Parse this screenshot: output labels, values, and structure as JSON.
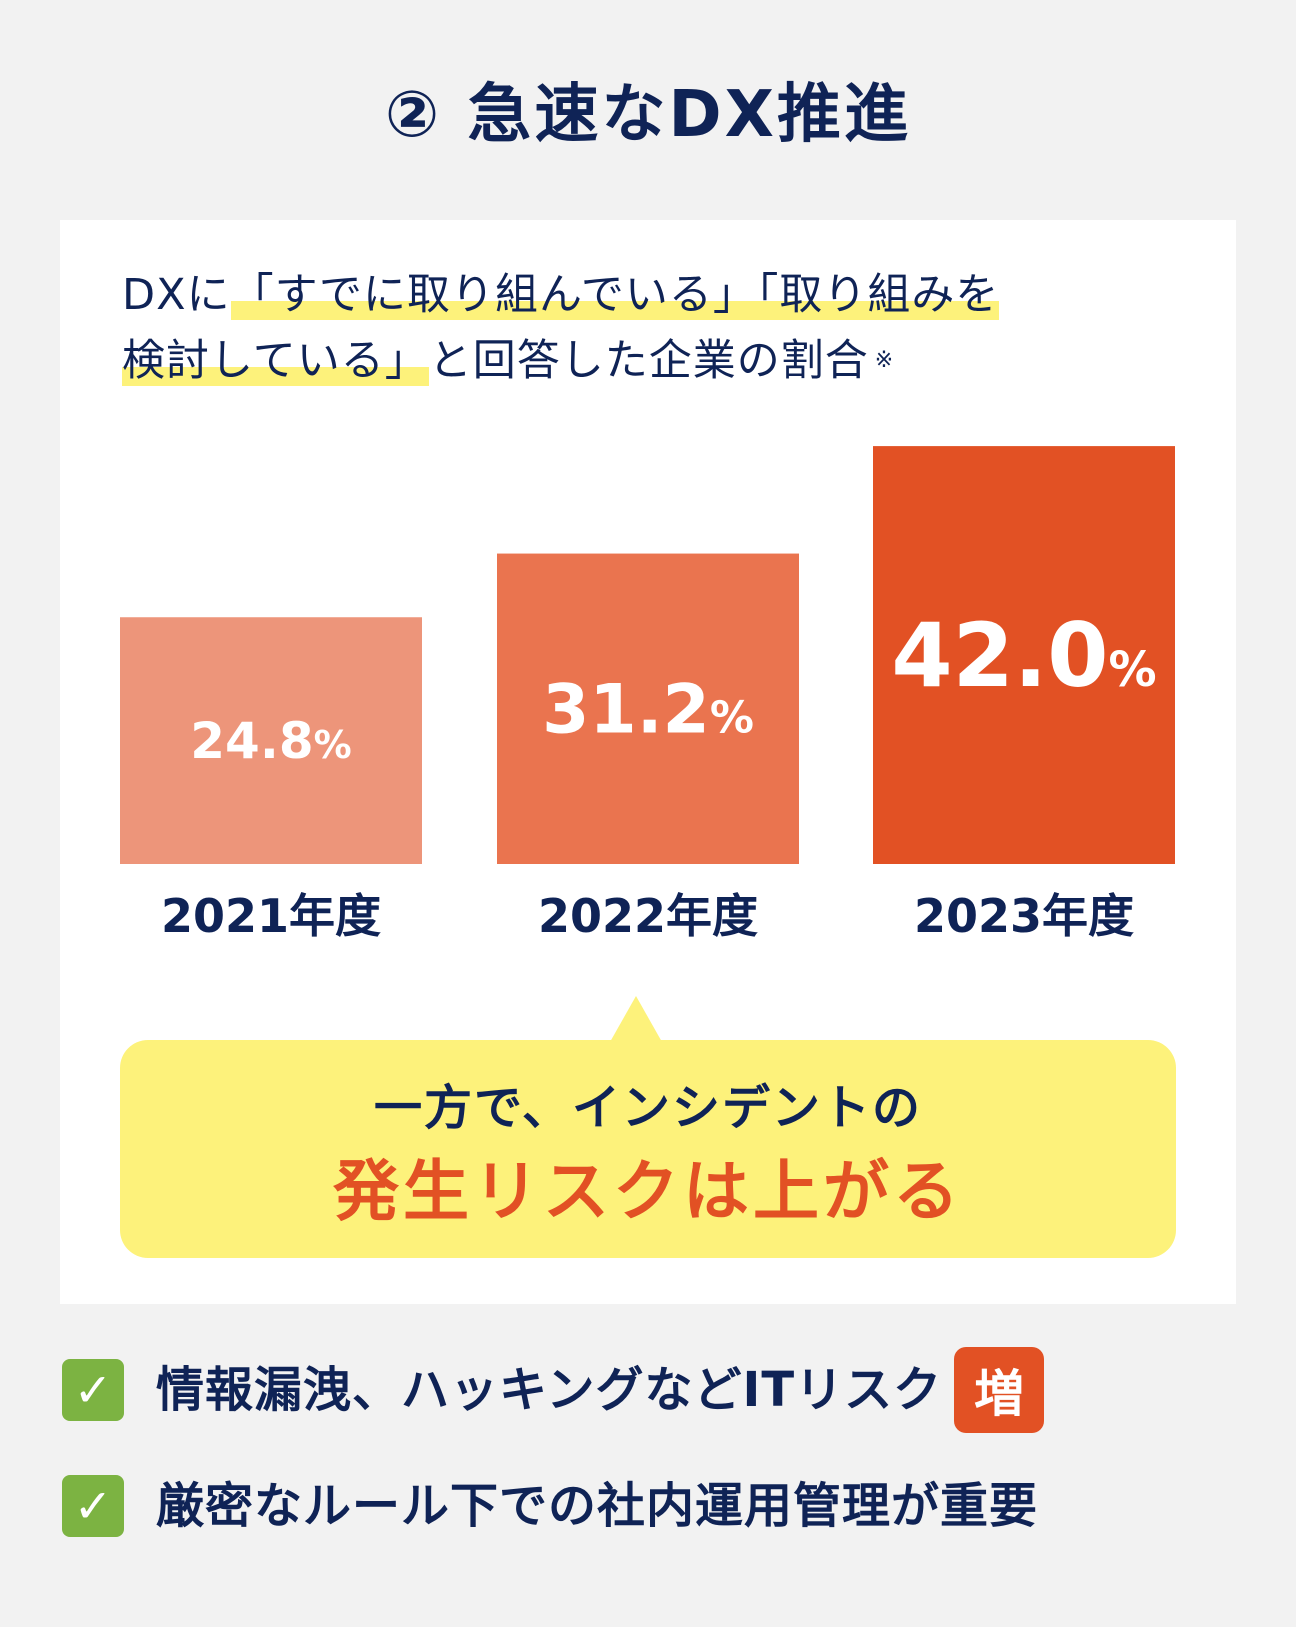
{
  "header": {
    "title": "② 急速なDX推進"
  },
  "card": {
    "subtitle_pre": "DXに",
    "subtitle_hl1": "「すでに取り組んでいる」「取り組みを",
    "subtitle_hl2": "検討している」",
    "subtitle_post": "と回答した企業の割合",
    "note_mark": "※"
  },
  "chart_data": {
    "type": "bar",
    "title": "DXに「すでに取り組んでいる」「取り組みを検討している」と回答した企業の割合",
    "categories": [
      "2021年度",
      "2022年度",
      "2023年度"
    ],
    "values": [
      24.8,
      31.2,
      42.0
    ],
    "value_labels": [
      "24.8",
      "31.2",
      "42.0"
    ],
    "unit": "%",
    "colors": [
      "#ed957a",
      "#ea744f",
      "#e25124"
    ],
    "legend": "none",
    "grid": false
  },
  "callout": {
    "line1": "一方で、インシデントの",
    "line2": "発生リスクは上がる"
  },
  "points": [
    {
      "check": "✓",
      "text": "情報漏洩、ハッキングなどITリスク",
      "badge": "増"
    },
    {
      "check": "✓",
      "text": "厳密なルール下での社内運用管理が重要"
    }
  ],
  "colors": {
    "navy": "#0f2356",
    "accent": "#e25124",
    "highlight": "#fdf27b",
    "check": "#7cb342"
  }
}
